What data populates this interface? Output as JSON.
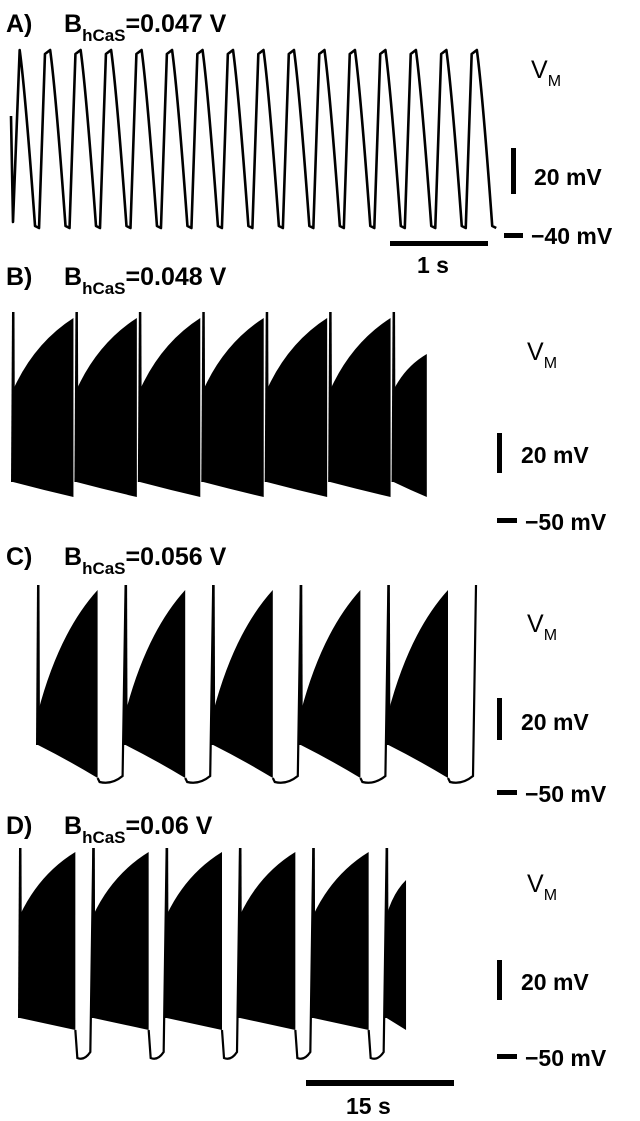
{
  "chart_data": [
    {
      "type": "line",
      "panel_label": "A)",
      "param_base": "B",
      "param_subscript": "hCaS",
      "param_value": "=0.047 V",
      "trace_label": "V",
      "trace_label_sub": "M",
      "scale_bar_label": "20 mV",
      "baseline_label": "−40 mV",
      "time_bar_label": "1 s",
      "pattern": "tonic-oscillation",
      "cycles": 16
    },
    {
      "type": "line",
      "panel_label": "B)",
      "param_base": "B",
      "param_subscript": "hCaS",
      "param_value": "=0.048 V",
      "trace_label": "V",
      "trace_label_sub": "M",
      "scale_bar_label": "20 mV",
      "baseline_label": "−50 mV",
      "pattern": "bursting",
      "bursts": 7
    },
    {
      "type": "line",
      "panel_label": "C)",
      "param_base": "B",
      "param_subscript": "hCaS",
      "param_value": "=0.056 V",
      "trace_label": "V",
      "trace_label_sub": "M",
      "scale_bar_label": "20 mV",
      "baseline_label": "−50 mV",
      "pattern": "bursting",
      "bursts": 5
    },
    {
      "type": "line",
      "panel_label": "D)",
      "param_base": "B",
      "param_subscript": "hCaS",
      "param_value": "=0.06 V",
      "trace_label": "V",
      "trace_label_sub": "M",
      "scale_bar_label": "20 mV",
      "baseline_label": "−50 mV",
      "time_bar_label": "15 s",
      "pattern": "bursting",
      "bursts": 6
    }
  ],
  "colors": {
    "trace": "#000000",
    "background": "#ffffff"
  }
}
